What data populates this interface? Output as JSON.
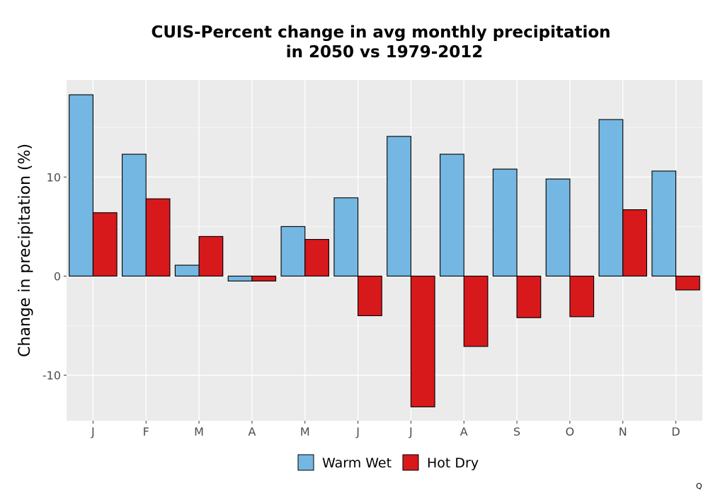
{
  "chart_data": {
    "type": "bar",
    "title_line1": "CUIS-Percent change in avg monthly precipitation",
    "title_line2": "in 2050 vs 1979-2012",
    "xlabel": "",
    "ylabel": "Change in precipitation (%)",
    "categories": [
      "J",
      "F",
      "M",
      "A",
      "M",
      "J",
      "J",
      "A",
      "S",
      "O",
      "N",
      "D"
    ],
    "series": [
      {
        "name": "Warm Wet",
        "color": "#74b7e2",
        "values": [
          18.3,
          12.3,
          1.1,
          -0.5,
          5.0,
          7.9,
          14.1,
          12.3,
          10.8,
          9.8,
          15.8,
          10.6
        ]
      },
      {
        "name": "Hot Dry",
        "color": "#d7191c",
        "values": [
          6.4,
          7.8,
          4.0,
          -0.5,
          3.7,
          -4.0,
          -13.2,
          -7.1,
          -4.2,
          -4.1,
          6.7,
          -1.4
        ]
      }
    ],
    "ylim": [
      -14.6,
      19.8
    ],
    "yticks": [
      -10,
      0,
      10
    ],
    "ytick_labels": [
      "-10",
      "0",
      "10"
    ],
    "grid": true,
    "legend_position": "bottom"
  },
  "corner_mark": "Q"
}
